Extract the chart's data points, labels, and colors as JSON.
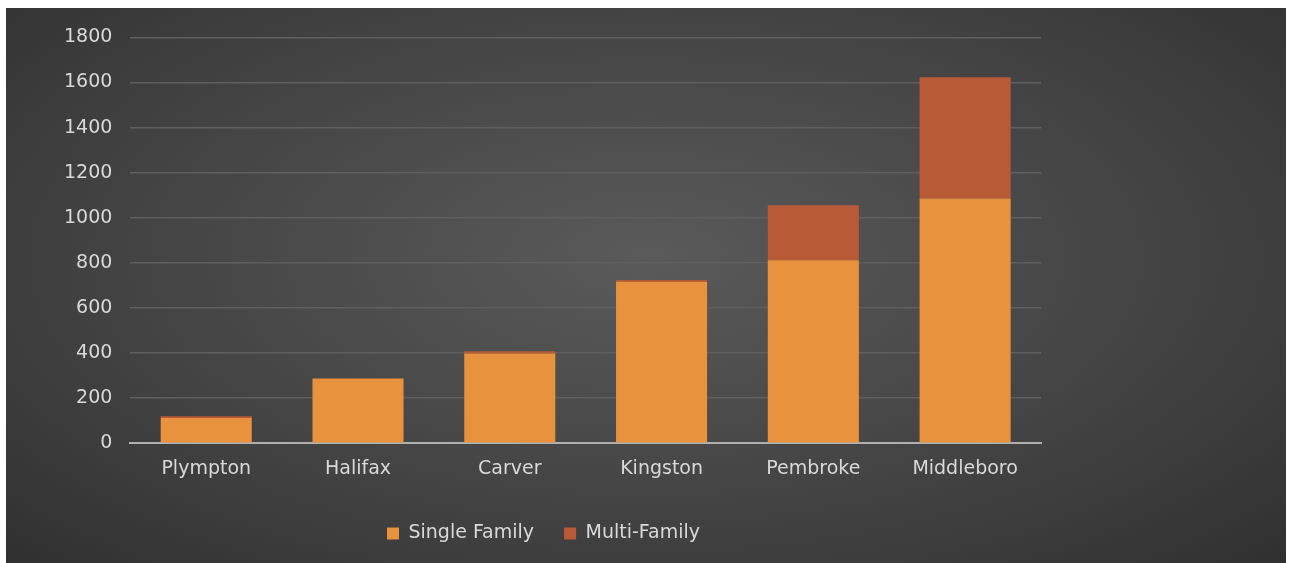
{
  "chart_data": {
    "type": "bar",
    "stacked": true,
    "categories": [
      "Plympton",
      "Halifax",
      "Carver",
      "Kingston",
      "Pembroke",
      "Middleboro"
    ],
    "series": [
      {
        "name": "Single Family",
        "color": "#e8923e",
        "values": [
          112,
          287,
          398,
          716,
          812,
          1085
        ]
      },
      {
        "name": "Multi-Family",
        "color": "#b85a35",
        "values": [
          8,
          0,
          10,
          8,
          244,
          538
        ]
      }
    ],
    "ylim": [
      0,
      1800
    ],
    "yticks": [
      0,
      200,
      400,
      600,
      800,
      1000,
      1200,
      1400,
      1600,
      1800
    ],
    "grid": "y",
    "legend": "bottom"
  }
}
